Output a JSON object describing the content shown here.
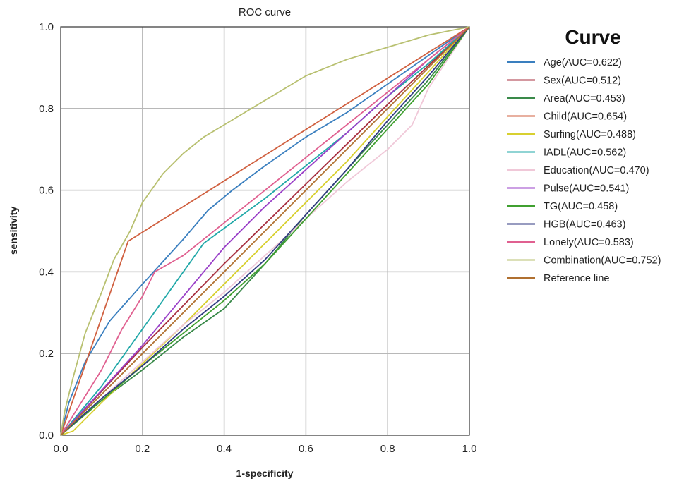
{
  "chart_data": {
    "type": "line",
    "title": "ROC curve",
    "xlabel": "1-specificity",
    "ylabel": "sensitivity",
    "xlim": [
      0,
      1
    ],
    "ylim": [
      0,
      1
    ],
    "x_ticks": [
      "0.0",
      "0.2",
      "0.4",
      "0.6",
      "0.8",
      "1.0"
    ],
    "y_ticks": [
      "0.0",
      "0.2",
      "0.4",
      "0.6",
      "0.8",
      "1.0"
    ],
    "grid": true,
    "legend_title": "Curve",
    "legend_position": "right",
    "series": [
      {
        "name": "Age(AUC=0.622)",
        "color": "#3a7fbf",
        "points": [
          [
            0,
            0
          ],
          [
            0.02,
            0.08
          ],
          [
            0.06,
            0.18
          ],
          [
            0.12,
            0.28
          ],
          [
            0.2,
            0.37
          ],
          [
            0.3,
            0.48
          ],
          [
            0.36,
            0.55
          ],
          [
            0.42,
            0.6
          ],
          [
            0.5,
            0.66
          ],
          [
            0.6,
            0.73
          ],
          [
            0.7,
            0.79
          ],
          [
            0.8,
            0.86
          ],
          [
            0.9,
            0.93
          ],
          [
            1,
            1
          ]
        ]
      },
      {
        "name": "Sex(AUC=0.512)",
        "color": "#a83040",
        "points": [
          [
            0,
            0
          ],
          [
            0.2,
            0.215
          ],
          [
            0.4,
            0.42
          ],
          [
            0.6,
            0.615
          ],
          [
            0.8,
            0.81
          ],
          [
            1,
            1
          ]
        ]
      },
      {
        "name": "Area(AUC=0.453)",
        "color": "#3a8a4a",
        "points": [
          [
            0,
            0
          ],
          [
            0.1,
            0.085
          ],
          [
            0.2,
            0.16
          ],
          [
            0.3,
            0.24
          ],
          [
            0.4,
            0.31
          ],
          [
            0.5,
            0.42
          ],
          [
            0.6,
            0.54
          ],
          [
            0.7,
            0.65
          ],
          [
            0.8,
            0.76
          ],
          [
            0.9,
            0.87
          ],
          [
            1,
            1
          ]
        ]
      },
      {
        "name": "Child(AUC=0.654)",
        "color": "#d06040",
        "points": [
          [
            0,
            0
          ],
          [
            0.165,
            0.475
          ],
          [
            1,
            1
          ]
        ]
      },
      {
        "name": "Surfing(AUC=0.488)",
        "color": "#d8d030",
        "points": [
          [
            0,
            0
          ],
          [
            0.03,
            0.01
          ],
          [
            0.1,
            0.08
          ],
          [
            0.2,
            0.175
          ],
          [
            0.3,
            0.27
          ],
          [
            0.4,
            0.37
          ],
          [
            0.5,
            0.47
          ],
          [
            0.6,
            0.57
          ],
          [
            0.7,
            0.67
          ],
          [
            0.8,
            0.78
          ],
          [
            0.9,
            0.89
          ],
          [
            1,
            1
          ]
        ]
      },
      {
        "name": "IADL(AUC=0.562)",
        "color": "#20a8a8",
        "points": [
          [
            0,
            0
          ],
          [
            0.1,
            0.12
          ],
          [
            0.2,
            0.26
          ],
          [
            0.3,
            0.4
          ],
          [
            0.35,
            0.47
          ],
          [
            0.5,
            0.58
          ],
          [
            0.6,
            0.66
          ],
          [
            0.7,
            0.74
          ],
          [
            0.8,
            0.83
          ],
          [
            0.9,
            0.91
          ],
          [
            1,
            1
          ]
        ]
      },
      {
        "name": "Education(AUC=0.470)",
        "color": "#f0c8d8",
        "points": [
          [
            0,
            0
          ],
          [
            0.1,
            0.09
          ],
          [
            0.2,
            0.18
          ],
          [
            0.3,
            0.27
          ],
          [
            0.4,
            0.35
          ],
          [
            0.5,
            0.44
          ],
          [
            0.6,
            0.53
          ],
          [
            0.7,
            0.62
          ],
          [
            0.8,
            0.7
          ],
          [
            0.86,
            0.76
          ],
          [
            0.9,
            0.85
          ],
          [
            1,
            1
          ]
        ]
      },
      {
        "name": "Pulse(AUC=0.541)",
        "color": "#9a40c8",
        "points": [
          [
            0,
            0
          ],
          [
            0.1,
            0.11
          ],
          [
            0.2,
            0.22
          ],
          [
            0.3,
            0.34
          ],
          [
            0.4,
            0.46
          ],
          [
            0.5,
            0.56
          ],
          [
            0.6,
            0.65
          ],
          [
            0.7,
            0.74
          ],
          [
            0.8,
            0.83
          ],
          [
            0.9,
            0.92
          ],
          [
            1,
            1
          ]
        ]
      },
      {
        "name": "TG(AUC=0.458)",
        "color": "#40a030",
        "points": [
          [
            0,
            0
          ],
          [
            0.1,
            0.085
          ],
          [
            0.2,
            0.17
          ],
          [
            0.3,
            0.25
          ],
          [
            0.4,
            0.33
          ],
          [
            0.5,
            0.42
          ],
          [
            0.6,
            0.53
          ],
          [
            0.7,
            0.64
          ],
          [
            0.8,
            0.75
          ],
          [
            0.9,
            0.86
          ],
          [
            1,
            1
          ]
        ]
      },
      {
        "name": "HGB(AUC=0.463)",
        "color": "#303a80",
        "points": [
          [
            0,
            0
          ],
          [
            0.1,
            0.09
          ],
          [
            0.2,
            0.17
          ],
          [
            0.3,
            0.26
          ],
          [
            0.4,
            0.34
          ],
          [
            0.5,
            0.43
          ],
          [
            0.6,
            0.54
          ],
          [
            0.7,
            0.65
          ],
          [
            0.8,
            0.77
          ],
          [
            0.9,
            0.88
          ],
          [
            1,
            1
          ]
        ]
      },
      {
        "name": "Lonely(AUC=0.583)",
        "color": "#e06090",
        "points": [
          [
            0,
            0
          ],
          [
            0.05,
            0.08
          ],
          [
            0.1,
            0.16
          ],
          [
            0.15,
            0.26
          ],
          [
            0.2,
            0.34
          ],
          [
            0.23,
            0.4
          ],
          [
            0.3,
            0.44
          ],
          [
            0.4,
            0.52
          ],
          [
            0.5,
            0.6
          ],
          [
            0.6,
            0.68
          ],
          [
            0.7,
            0.76
          ],
          [
            0.8,
            0.84
          ],
          [
            0.9,
            0.92
          ],
          [
            1,
            1
          ]
        ]
      },
      {
        "name": "Combination(AUC=0.752)",
        "color": "#b8c070",
        "points": [
          [
            0,
            0
          ],
          [
            0.01,
            0.06
          ],
          [
            0.03,
            0.14
          ],
          [
            0.06,
            0.25
          ],
          [
            0.1,
            0.35
          ],
          [
            0.13,
            0.43
          ],
          [
            0.17,
            0.5
          ],
          [
            0.2,
            0.57
          ],
          [
            0.25,
            0.64
          ],
          [
            0.3,
            0.69
          ],
          [
            0.35,
            0.73
          ],
          [
            0.4,
            0.76
          ],
          [
            0.5,
            0.82
          ],
          [
            0.6,
            0.88
          ],
          [
            0.7,
            0.92
          ],
          [
            0.8,
            0.95
          ],
          [
            0.9,
            0.98
          ],
          [
            1,
            1
          ]
        ]
      },
      {
        "name": "Reference line",
        "color": "#b07030",
        "points": [
          [
            0,
            0
          ],
          [
            1,
            1
          ]
        ]
      }
    ]
  }
}
